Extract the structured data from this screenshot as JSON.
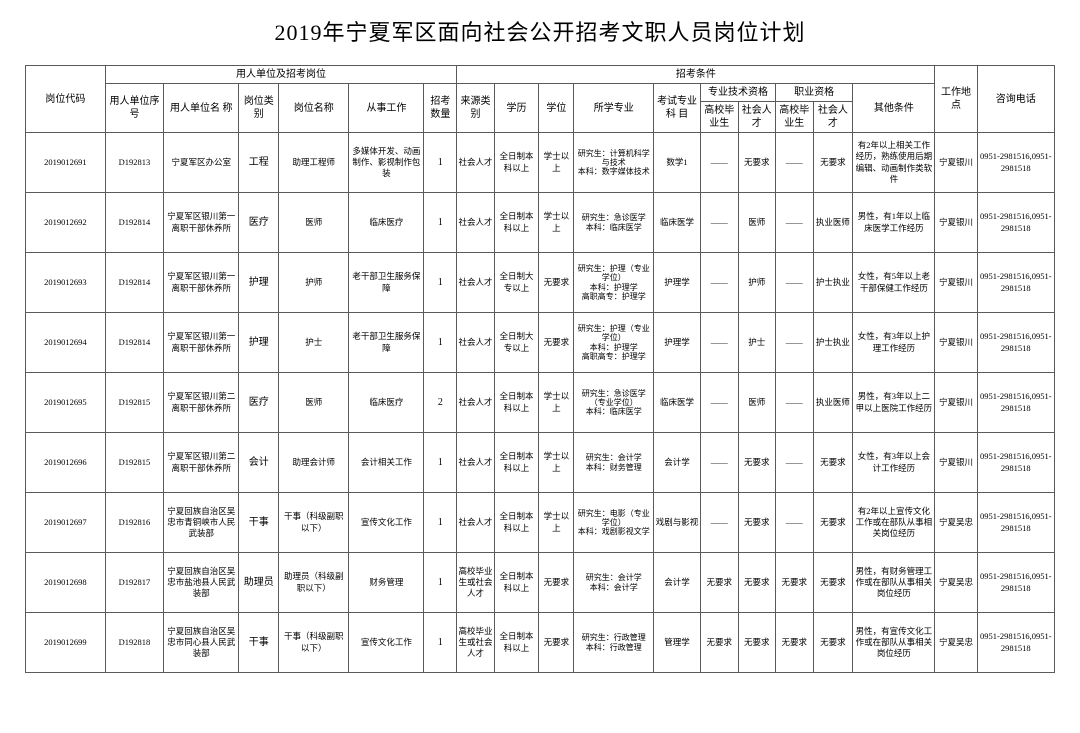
{
  "title": "2019年宁夏军区面向社会公开招考文职人员岗位计划",
  "headers": {
    "colGroup1": "用人单位及招考岗位",
    "colGroup2": "招考条件",
    "code": "岗位代码",
    "unitNo": "用人单位序  号",
    "unitName": "用人单位名  称",
    "postType": "岗位类别",
    "postName": "岗位名称",
    "work": "从事工作",
    "qty": "招考数量",
    "source": "来源类别",
    "edu": "学历",
    "degree": "学位",
    "major": "所学专业",
    "subject": "考试专业科  目",
    "profTech": "专业技术资格",
    "vocQual": "职业资格",
    "hg": "高校毕业生",
    "st": "社会人才",
    "other": "其他条件",
    "loc": "工作地点",
    "phone": "咨询电话"
  },
  "rows": [
    {
      "code": "2019012691",
      "unitNo": "D192813",
      "unitName": "宁夏军区办公室",
      "postType": "工程",
      "postName": "助理工程师",
      "work": "多媒体开发、动画制作、影视制作包装",
      "qty": "1",
      "source": "社会人才",
      "edu": "全日制本科以上",
      "degree": "学士以上",
      "major": "研究生：计算机科学与技术\n本科：数字媒体技术",
      "subject": "数学1",
      "pg": "——",
      "ps": "无要求",
      "vg": "——",
      "vs": "无要求",
      "other": "有2年以上相关工作经历，熟练使用后期编辑、动画制作类软件",
      "loc": "宁夏银川",
      "phone": "0951-2981516,0951-2981518"
    },
    {
      "code": "2019012692",
      "unitNo": "D192814",
      "unitName": "宁夏军区银川第一离职干部休养所",
      "postType": "医疗",
      "postName": "医师",
      "work": "临床医疗",
      "qty": "1",
      "source": "社会人才",
      "edu": "全日制本科以上",
      "degree": "学士以上",
      "major": "研究生：急诊医学\n本科：临床医学",
      "subject": "临床医学",
      "pg": "——",
      "ps": "医师",
      "vg": "——",
      "vs": "执业医师",
      "other": "男性，有1年以上临床医学工作经历",
      "loc": "宁夏银川",
      "phone": "0951-2981516,0951-2981518"
    },
    {
      "code": "2019012693",
      "unitNo": "D192814",
      "unitName": "宁夏军区银川第一离职干部休养所",
      "postType": "护理",
      "postName": "护师",
      "work": "老干部卫生服务保障",
      "qty": "1",
      "source": "社会人才",
      "edu": "全日制大专以上",
      "degree": "无要求",
      "major": "研究生：护理（专业学位）\n本科：护理学\n高职高专：护理学",
      "subject": "护理学",
      "pg": "——",
      "ps": "护师",
      "vg": "——",
      "vs": "护士执业",
      "other": "女性，有5年以上老干部保健工作经历",
      "loc": "宁夏银川",
      "phone": "0951-2981516,0951-2981518"
    },
    {
      "code": "2019012694",
      "unitNo": "D192814",
      "unitName": "宁夏军区银川第一离职干部休养所",
      "postType": "护理",
      "postName": "护士",
      "work": "老干部卫生服务保障",
      "qty": "1",
      "source": "社会人才",
      "edu": "全日制大专以上",
      "degree": "无要求",
      "major": "研究生：护理（专业学位）\n本科：护理学\n高职高专：护理学",
      "subject": "护理学",
      "pg": "——",
      "ps": "护士",
      "vg": "——",
      "vs": "护士执业",
      "other": "女性，有3年以上护理工作经历",
      "loc": "宁夏银川",
      "phone": "0951-2981516,0951-2981518"
    },
    {
      "code": "2019012695",
      "unitNo": "D192815",
      "unitName": "宁夏军区银川第二离职干部休养所",
      "postType": "医疗",
      "postName": "医师",
      "work": "临床医疗",
      "qty": "2",
      "source": "社会人才",
      "edu": "全日制本科以上",
      "degree": "学士以上",
      "major": "研究生：急诊医学（专业学位）\n本科：临床医学",
      "subject": "临床医学",
      "pg": "——",
      "ps": "医师",
      "vg": "——",
      "vs": "执业医师",
      "other": "男性，有3年以上二甲以上医院工作经历",
      "loc": "宁夏银川",
      "phone": "0951-2981516,0951-2981518"
    },
    {
      "code": "2019012696",
      "unitNo": "D192815",
      "unitName": "宁夏军区银川第二离职干部休养所",
      "postType": "会计",
      "postName": "助理会计师",
      "work": "会计相关工作",
      "qty": "1",
      "source": "社会人才",
      "edu": "全日制本科以上",
      "degree": "学士以上",
      "major": "研究生：会计学\n本科：财务管理",
      "subject": "会计学",
      "pg": "——",
      "ps": "无要求",
      "vg": "——",
      "vs": "无要求",
      "other": "女性，有3年以上会计工作经历",
      "loc": "宁夏银川",
      "phone": "0951-2981516,0951-2981518"
    },
    {
      "code": "2019012697",
      "unitNo": "D192816",
      "unitName": "宁夏回族自治区吴忠市青铜峡市人民武装部",
      "postType": "干事",
      "postName": "干事（科级副职以下）",
      "work": "宣传文化工作",
      "qty": "1",
      "source": "社会人才",
      "edu": "全日制本科以上",
      "degree": "学士以上",
      "major": "研究生：电影（专业学位）\n本科：戏剧影视文学",
      "subject": "戏剧与影视",
      "pg": "——",
      "ps": "无要求",
      "vg": "——",
      "vs": "无要求",
      "other": "有2年以上宣传文化工作或在部队从事相关岗位经历",
      "loc": "宁夏吴忠",
      "phone": "0951-2981516,0951-2981518"
    },
    {
      "code": "2019012698",
      "unitNo": "D192817",
      "unitName": "宁夏回族自治区吴忠市盐池县人民武装部",
      "postType": "助理员",
      "postName": "助理员（科级副职以下）",
      "work": "财务管理",
      "qty": "1",
      "source": "高校毕业生或社会人才",
      "edu": "全日制本科以上",
      "degree": "无要求",
      "major": "研究生：会计学\n本科：会计学",
      "subject": "会计学",
      "pg": "无要求",
      "ps": "无要求",
      "vg": "无要求",
      "vs": "无要求",
      "other": "男性，有财务管理工作或在部队从事相关岗位经历",
      "loc": "宁夏吴忠",
      "phone": "0951-2981516,0951-2981518"
    },
    {
      "code": "2019012699",
      "unitNo": "D192818",
      "unitName": "宁夏回族自治区吴忠市同心县人民武装部",
      "postType": "干事",
      "postName": "干事（科级副职以下）",
      "work": "宣传文化工作",
      "qty": "1",
      "source": "高校毕业生或社会人才",
      "edu": "全日制本科以上",
      "degree": "无要求",
      "major": "研究生：行政管理\n本科：行政管理",
      "subject": "管理学",
      "pg": "无要求",
      "ps": "无要求",
      "vg": "无要求",
      "vs": "无要求",
      "other": "男性，有宣传文化工作或在部队从事相关岗位经历",
      "loc": "宁夏吴忠",
      "phone": "0951-2981516,0951-2981518"
    }
  ]
}
